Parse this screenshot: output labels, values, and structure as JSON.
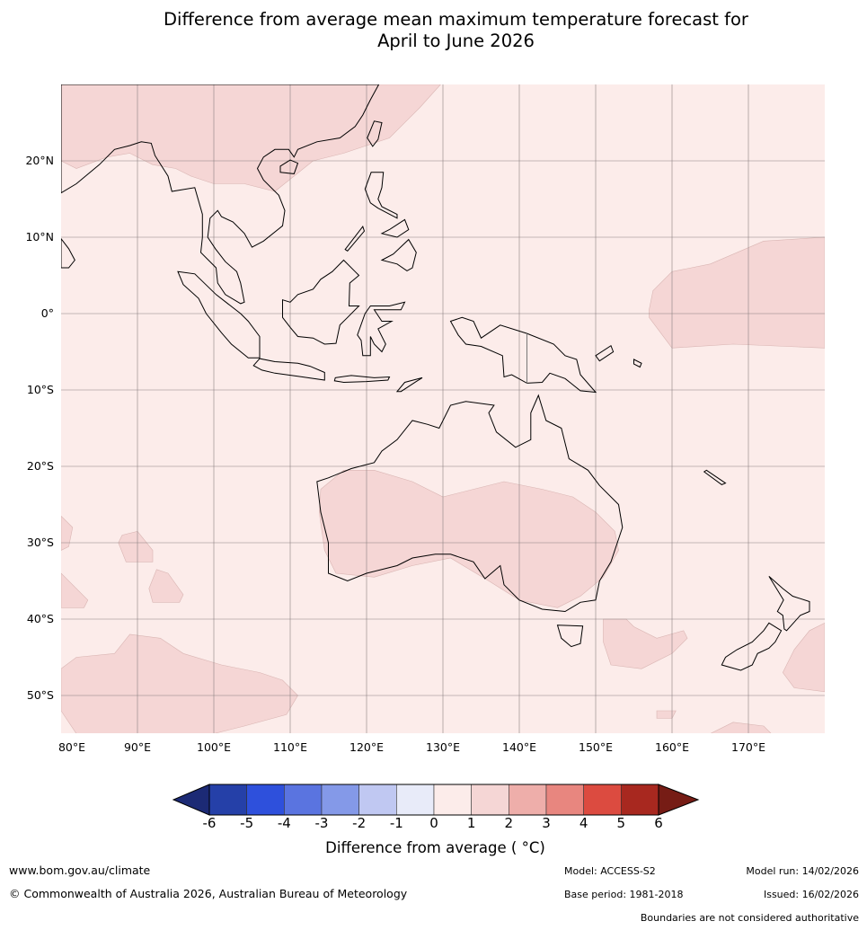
{
  "title_line1": "Difference from average mean maximum temperature forecast for",
  "title_line2": "April to June 2026",
  "lat_labels": [
    "20°N",
    "10°N",
    "0°",
    "10°S",
    "20°S",
    "30°S",
    "40°S",
    "50°S"
  ],
  "lon_labels": [
    "80°E",
    "90°E",
    "100°E",
    "110°E",
    "120°E",
    "130°E",
    "140°E",
    "150°E",
    "160°E",
    "170°E"
  ],
  "colorbar": {
    "label": "Difference from average ( °C)",
    "ticks": [
      "-6",
      "-5",
      "-4",
      "-3",
      "-2",
      "-1",
      "0",
      "1",
      "2",
      "3",
      "4",
      "5",
      "6"
    ],
    "colors": [
      "#2540a8",
      "#2e50dc",
      "#5a74e0",
      "#8499e8",
      "#c0c8f2",
      "#e8ebf9",
      "#fcecea",
      "#f5d6d5",
      "#eeaeaa",
      "#e8867f",
      "#dc4b40",
      "#a8281f"
    ],
    "under_color": "#1c2a75",
    "over_color": "#761c15"
  },
  "map_colors": {
    "background_class": "#fcecea",
    "shaded_class": "#f5d6d5"
  },
  "footer": {
    "website": "www.bom.gov.au/climate",
    "copyright": "© Commonwealth of Australia 2026, Australian Bureau of Meteorology",
    "model": "Model: ACCESS-S2",
    "model_run": "Model run: 14/02/2026",
    "base_period": "Base period: 1981-2018",
    "issued": "Issued: 16/02/2026",
    "disclaimer": "Boundaries are not considered authoritative"
  }
}
